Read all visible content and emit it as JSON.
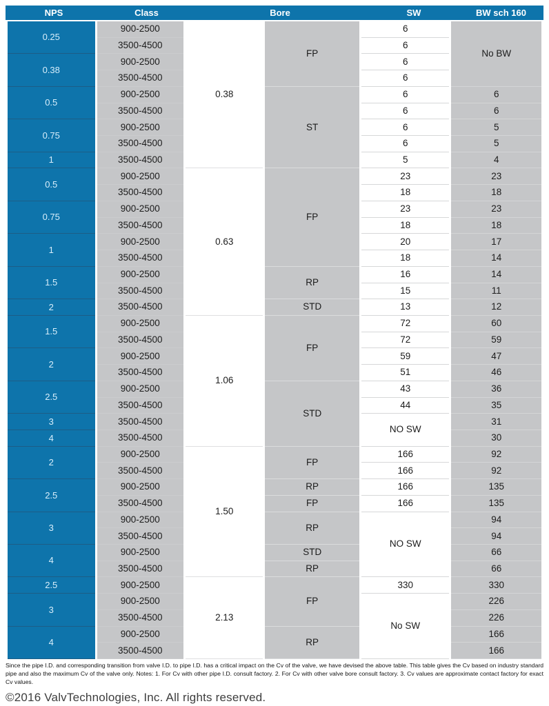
{
  "header": {
    "nps": "NPS",
    "class": "Class",
    "bore": "Bore",
    "sw": "SW",
    "bw": "BW sch 160"
  },
  "colors": {
    "header_blue": "#0e74ab",
    "cell_gray": "#c5c6c8",
    "nps_text": "#d7eefb"
  },
  "rows": [
    {
      "nps": [
        "0.25",
        2
      ],
      "cls": "900-2500",
      "bore": [
        "0.38",
        9
      ],
      "type": [
        "FP",
        4
      ],
      "sw": [
        "6",
        1
      ],
      "bw": [
        "No BW",
        4
      ]
    },
    {
      "cls": "3500-4500",
      "sw": [
        "6",
        1
      ]
    },
    {
      "nps": [
        "0.38",
        2
      ],
      "cls": "900-2500",
      "sw": [
        "6",
        1
      ]
    },
    {
      "cls": "3500-4500",
      "sw": [
        "6",
        1
      ]
    },
    {
      "nps": [
        "0.5",
        2
      ],
      "cls": "900-2500",
      "type": [
        "ST",
        5
      ],
      "sw": [
        "6",
        1
      ],
      "bw": [
        "6",
        1
      ]
    },
    {
      "cls": "3500-4500",
      "sw": [
        "6",
        1
      ],
      "bw": [
        "6",
        1
      ]
    },
    {
      "nps": [
        "0.75",
        2
      ],
      "cls": "900-2500",
      "sw": [
        "6",
        1
      ],
      "bw": [
        "5",
        1
      ]
    },
    {
      "cls": "3500-4500",
      "sw": [
        "6",
        1
      ],
      "bw": [
        "5",
        1
      ]
    },
    {
      "nps": [
        "1",
        1
      ],
      "cls": "3500-4500",
      "sw": [
        "5",
        1
      ],
      "bw": [
        "4",
        1
      ]
    },
    {
      "nps": [
        "0.5",
        2
      ],
      "cls": "900-2500",
      "bore": [
        "0.63",
        9
      ],
      "type": [
        "FP",
        6
      ],
      "sw": [
        "23",
        1
      ],
      "bw": [
        "23",
        1
      ]
    },
    {
      "cls": "3500-4500",
      "sw": [
        "18",
        1
      ],
      "bw": [
        "18",
        1
      ]
    },
    {
      "nps": [
        "0.75",
        2
      ],
      "cls": "900-2500",
      "sw": [
        "23",
        1
      ],
      "bw": [
        "23",
        1
      ]
    },
    {
      "cls": "3500-4500",
      "sw": [
        "18",
        1
      ],
      "bw": [
        "18",
        1
      ]
    },
    {
      "nps": [
        "1",
        2
      ],
      "cls": "900-2500",
      "sw": [
        "20",
        1
      ],
      "bw": [
        "17",
        1
      ]
    },
    {
      "cls": "3500-4500",
      "sw": [
        "18",
        1
      ],
      "bw": [
        "14",
        1
      ]
    },
    {
      "nps": [
        "1.5",
        2
      ],
      "cls": "900-2500",
      "type": [
        "RP",
        2
      ],
      "sw": [
        "16",
        1
      ],
      "bw": [
        "14",
        1
      ]
    },
    {
      "cls": "3500-4500",
      "sw": [
        "15",
        1
      ],
      "bw": [
        "11",
        1
      ]
    },
    {
      "nps": [
        "2",
        1
      ],
      "cls": "3500-4500",
      "type": [
        "STD",
        1
      ],
      "sw": [
        "13",
        1
      ],
      "bw": [
        "12",
        1
      ]
    },
    {
      "nps": [
        "1.5",
        2
      ],
      "cls": "900-2500",
      "bore": [
        "1.06",
        8
      ],
      "type": [
        "FP",
        4
      ],
      "sw": [
        "72",
        1
      ],
      "bw": [
        "60",
        1
      ]
    },
    {
      "cls": "3500-4500",
      "sw": [
        "72",
        1
      ],
      "bw": [
        "59",
        1
      ]
    },
    {
      "nps": [
        "2",
        2
      ],
      "cls": "900-2500",
      "sw": [
        "59",
        1
      ],
      "bw": [
        "47",
        1
      ]
    },
    {
      "cls": "3500-4500",
      "sw": [
        "51",
        1
      ],
      "bw": [
        "46",
        1
      ]
    },
    {
      "nps": [
        "2.5",
        2
      ],
      "cls": "900-2500",
      "type": [
        "STD",
        4
      ],
      "sw": [
        "43",
        1
      ],
      "bw": [
        "36",
        1
      ]
    },
    {
      "cls": "3500-4500",
      "sw": [
        "44",
        1
      ],
      "bw": [
        "35",
        1
      ]
    },
    {
      "nps": [
        "3",
        1
      ],
      "cls": "3500-4500",
      "sw": [
        "NO SW",
        2
      ],
      "bw": [
        "31",
        1
      ]
    },
    {
      "nps": [
        "4",
        1
      ],
      "cls": "3500-4500",
      "bw": [
        "30",
        1
      ]
    },
    {
      "nps": [
        "2",
        2
      ],
      "cls": "900-2500",
      "bore": [
        "1.50",
        8
      ],
      "type": [
        "FP",
        2
      ],
      "sw": [
        "166",
        1
      ],
      "bw": [
        "92",
        1
      ]
    },
    {
      "cls": "3500-4500",
      "sw": [
        "166",
        1
      ],
      "bw": [
        "92",
        1
      ]
    },
    {
      "nps": [
        "2.5",
        2
      ],
      "cls": "900-2500",
      "type": [
        "RP",
        1
      ],
      "sw": [
        "166",
        1
      ],
      "bw": [
        "135",
        1
      ]
    },
    {
      "cls": "3500-4500",
      "type": [
        "FP",
        1
      ],
      "sw": [
        "166",
        1
      ],
      "bw": [
        "135",
        1
      ]
    },
    {
      "nps": [
        "3",
        2
      ],
      "cls": "900-2500",
      "type": [
        "RP",
        2
      ],
      "sw": [
        "NO SW",
        4
      ],
      "bw": [
        "94",
        1
      ]
    },
    {
      "cls": "3500-4500",
      "bw": [
        "94",
        1
      ]
    },
    {
      "nps": [
        "4",
        2
      ],
      "cls": "900-2500",
      "type": [
        "STD",
        1
      ],
      "bw": [
        "66",
        1
      ]
    },
    {
      "cls": "3500-4500",
      "type": [
        "RP",
        1
      ],
      "bw": [
        "66",
        1
      ]
    },
    {
      "nps": [
        "2.5",
        1
      ],
      "cls": "900-2500",
      "bore": [
        "2.13",
        5
      ],
      "type": [
        "FP",
        3
      ],
      "sw": [
        "330",
        1
      ],
      "bw": [
        "330",
        1
      ]
    },
    {
      "nps": [
        "3",
        2
      ],
      "cls": "900-2500",
      "sw": [
        "No SW",
        4
      ],
      "bw": [
        "226",
        1
      ]
    },
    {
      "cls": "3500-4500",
      "bw": [
        "226",
        1
      ]
    },
    {
      "nps": [
        "4",
        2
      ],
      "cls": "900-2500",
      "type": [
        "RP",
        2
      ],
      "bw": [
        "166",
        1
      ]
    },
    {
      "cls": "3500-4500",
      "bw": [
        "166",
        1
      ]
    }
  ],
  "footnote": "Since the pipe I.D. and corresponding transition from valve I.D. to pipe I.D. has a critical impact on the Cv of the valve, we have devised the above table. This table gives the Cv based on industry standard pipe and also the maximum Cv of the valve only. Notes: 1. For Cv with other pipe I.D. consult factory. 2. For Cv with other valve bore consult factory. 3. Cv values are approximate contact factory for exact Cv values.",
  "copyright": "©2016 ValvTechnologies, Inc. All rights reserved."
}
